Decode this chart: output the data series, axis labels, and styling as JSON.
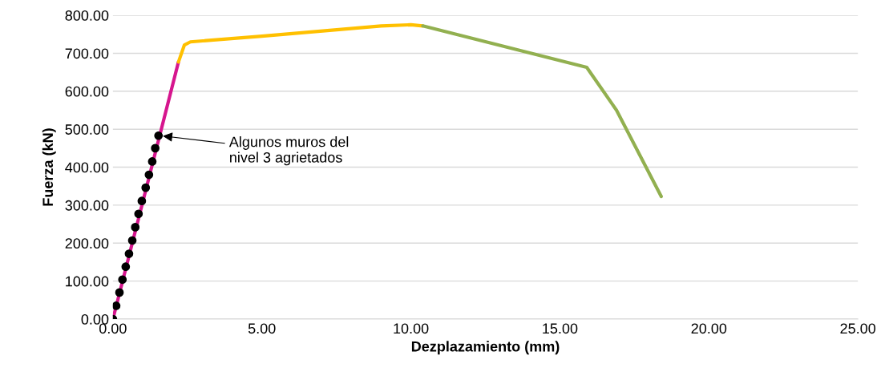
{
  "chart_data": {
    "type": "line",
    "xlabel": "Dezplazamiento (mm)",
    "ylabel": "Fuerza (kN)",
    "xlim": [
      0,
      25
    ],
    "ylim": [
      0,
      800
    ],
    "xticks": [
      {
        "value": 0,
        "label": "0.00"
      },
      {
        "value": 5,
        "label": "5.00"
      },
      {
        "value": 10,
        "label": "10.00"
      },
      {
        "value": 15,
        "label": "15.00"
      },
      {
        "value": 20,
        "label": "20.00"
      },
      {
        "value": 25,
        "label": "25.00"
      }
    ],
    "yticks": [
      {
        "value": 0,
        "label": "0.00"
      },
      {
        "value": 100,
        "label": "100.00"
      },
      {
        "value": 200,
        "label": "200.00"
      },
      {
        "value": 300,
        "label": "300.00"
      },
      {
        "value": 400,
        "label": "400.00"
      },
      {
        "value": 500,
        "label": "500.00"
      },
      {
        "value": 600,
        "label": "600.00"
      },
      {
        "value": 700,
        "label": "700.00"
      },
      {
        "value": 800,
        "label": "800.00"
      }
    ],
    "grid": "y",
    "series": [
      {
        "color": "#d6168e",
        "x": [
          0,
          2.2
        ],
        "values": [
          0,
          677
        ]
      },
      {
        "color": "#ffc000",
        "x": [
          2.2,
          2.4,
          2.6,
          5,
          9,
          10,
          10.4
        ],
        "values": [
          677,
          722,
          730,
          745,
          772,
          775,
          772
        ]
      },
      {
        "color": "#92b050",
        "x": [
          10.4,
          15.9,
          16.9,
          18.4
        ],
        "values": [
          772,
          663,
          550,
          323
        ]
      },
      {
        "type": "scatter",
        "color": "#000000",
        "marker": "circle",
        "x": [
          0,
          0.11,
          0.22,
          0.32,
          0.43,
          0.54,
          0.65,
          0.75,
          0.86,
          0.97,
          1.1,
          1.21,
          1.32,
          1.42,
          1.53
        ],
        "values": [
          0,
          35,
          70,
          104,
          138,
          172,
          207,
          242,
          277,
          311,
          346,
          380,
          415,
          450,
          483
        ]
      }
    ],
    "annotations": [
      {
        "text": "Algunos muros del\nnivel 3 agrietados",
        "x": 1.6,
        "y": 483
      }
    ]
  }
}
